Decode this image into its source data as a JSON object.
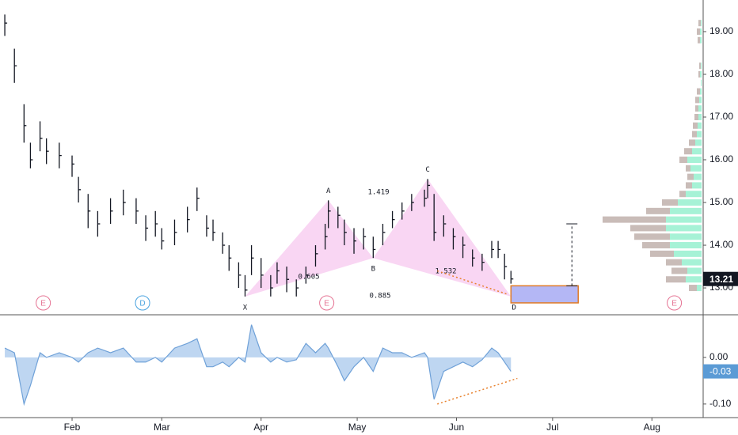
{
  "chart_data": {
    "type": "ohlc",
    "color": "#131722",
    "x": [
      11,
      14,
      17,
      19,
      22,
      24,
      28,
      32,
      34,
      37,
      40,
      44,
      48,
      52,
      55,
      58,
      60,
      64,
      68,
      71,
      74,
      76,
      79,
      81,
      84,
      86,
      88,
      91,
      94,
      96,
      99,
      102,
      105,
      108,
      111,
      112,
      115,
      117,
      120,
      123,
      126,
      129,
      132,
      135,
      138,
      142,
      143,
      145,
      148,
      151,
      154,
      157,
      160,
      163,
      165,
      167,
      169
    ],
    "high": [
      19.4,
      18.6,
      17.3,
      16.4,
      16.9,
      16.5,
      16.4,
      16.1,
      15.6,
      15.2,
      14.8,
      15.1,
      15.3,
      15.1,
      14.7,
      14.8,
      14.4,
      14.6,
      14.9,
      15.35,
      14.7,
      14.6,
      14.3,
      14.0,
      13.6,
      13.3,
      14.0,
      13.7,
      13.3,
      13.6,
      13.5,
      13.2,
      13.5,
      14.0,
      14.5,
      15.05,
      14.9,
      14.6,
      14.4,
      14.4,
      14.2,
      14.5,
      14.8,
      15.0,
      15.2,
      15.3,
      15.55,
      15.2,
      14.7,
      14.4,
      14.2,
      13.9,
      13.8,
      14.1,
      14.1,
      13.8,
      13.4
    ],
    "low": [
      18.9,
      17.8,
      16.4,
      15.8,
      16.2,
      15.9,
      15.8,
      15.6,
      15.0,
      14.4,
      14.2,
      14.5,
      14.7,
      14.5,
      14.1,
      14.2,
      13.9,
      14.0,
      14.3,
      14.8,
      14.2,
      14.1,
      13.8,
      13.4,
      13.0,
      12.8,
      13.3,
      13.0,
      12.8,
      13.1,
      12.9,
      12.8,
      13.1,
      13.5,
      13.9,
      14.4,
      14.4,
      14.0,
      13.8,
      13.9,
      13.7,
      14.0,
      14.4,
      14.6,
      14.8,
      14.9,
      15.1,
      14.1,
      14.2,
      13.9,
      13.7,
      13.5,
      13.4,
      13.7,
      13.7,
      13.2,
      13.1
    ],
    "close": [
      19.2,
      18.2,
      16.8,
      16.0,
      16.5,
      16.2,
      16.1,
      15.9,
      15.3,
      14.8,
      14.5,
      14.8,
      15.0,
      14.8,
      14.4,
      14.5,
      14.1,
      14.3,
      14.6,
      15.1,
      14.4,
      14.3,
      14.0,
      13.7,
      13.3,
      12.95,
      13.7,
      13.3,
      13.0,
      13.4,
      13.2,
      13.0,
      13.3,
      13.8,
      14.2,
      14.8,
      14.7,
      14.3,
      14.1,
      14.2,
      13.9,
      14.3,
      14.6,
      14.8,
      15.0,
      15.1,
      15.4,
      14.3,
      14.5,
      14.2,
      14.0,
      13.7,
      13.6,
      13.9,
      13.9,
      13.5,
      13.21
    ],
    "xlim": [
      9.5,
      229
    ],
    "xticks": [
      {
        "value": 32,
        "label": "Feb"
      },
      {
        "value": 60,
        "label": "Mar"
      },
      {
        "value": 91,
        "label": "Apr"
      },
      {
        "value": 121,
        "label": "May"
      },
      {
        "value": 152,
        "label": "Jun"
      },
      {
        "value": 182,
        "label": "Jul"
      },
      {
        "value": 213,
        "label": "Aug"
      }
    ],
    "ylim": [
      12.39,
      19.74
    ],
    "yticks": [
      {
        "value": 13,
        "label": "13.00"
      },
      {
        "value": 14,
        "label": "14.00"
      },
      {
        "value": 15,
        "label": "15.00"
      },
      {
        "value": 16,
        "label": "16.00"
      },
      {
        "value": 17,
        "label": "17.00"
      },
      {
        "value": 18,
        "label": "18.00"
      },
      {
        "value": 19,
        "label": "19.00"
      }
    ],
    "last_price": 13.21,
    "pattern": {
      "x": [
        86,
        112,
        126,
        143,
        169
      ],
      "y": [
        12.8,
        15.05,
        13.7,
        15.55,
        12.8
      ],
      "labels": [
        "X",
        "A",
        "B",
        "C",
        "D"
      ],
      "ratios": [
        0.605,
        1.419,
        0.885,
        1.532
      ],
      "color": "#f7c8ef"
    },
    "events": {
      "x": [
        23,
        54,
        111.5,
        220
      ],
      "labels": [
        "E",
        "D",
        "E",
        "E"
      ],
      "colors": [
        "#e57393",
        "#4aa3df",
        "#e57393",
        "#e57393"
      ]
    },
    "target": {
      "xlim": [
        169,
        190
      ],
      "ylim": [
        12.65,
        13.05
      ],
      "price": 14.5,
      "color": "#b4b7f5"
    },
    "divergence": {
      "x": [
        146,
        168
      ],
      "price": [
        13.4,
        12.85
      ],
      "x2": [
        146,
        171
      ],
      "indicator": [
        -0.1,
        -0.045
      ],
      "color": "#e8822f"
    },
    "indicator": {
      "values": [
        0.02,
        0.01,
        -0.1,
        -0.06,
        0.01,
        0.0,
        0.01,
        0.0,
        -0.01,
        0.01,
        0.02,
        0.01,
        0.02,
        -0.01,
        -0.01,
        0.0,
        -0.01,
        0.02,
        0.03,
        0.04,
        -0.02,
        -0.02,
        -0.01,
        -0.02,
        0.0,
        -0.01,
        0.07,
        0.01,
        -0.01,
        0.0,
        -0.01,
        -0.005,
        0.03,
        0.01,
        0.03,
        0.02,
        -0.02,
        -0.05,
        -0.02,
        0.0,
        -0.03,
        0.02,
        0.01,
        0.01,
        0.0,
        0.01,
        0.0,
        -0.09,
        -0.03,
        -0.02,
        -0.01,
        -0.02,
        -0.005,
        0.02,
        0.01,
        -0.01,
        -0.03
      ],
      "ylim": [
        -0.124,
        0.088
      ],
      "yticks": [
        {
          "value": 0,
          "label": "0.00"
        },
        {
          "value": -0.1,
          "label": "-0.10"
        }
      ],
      "last": -0.03,
      "color": "#6fa1d8"
    },
    "volume_profile": {
      "prices": [
        13.0,
        13.2,
        13.4,
        13.6,
        13.8,
        14.0,
        14.2,
        14.4,
        14.6,
        14.8,
        15.0,
        15.2,
        15.4,
        15.6,
        15.8,
        16.0,
        16.2,
        16.4,
        16.6,
        16.8,
        17.0,
        17.2,
        17.4,
        17.6,
        17.8,
        18.0,
        18.2,
        18.4,
        18.6,
        18.8,
        19.0,
        19.2
      ],
      "up": [
        6,
        20,
        18,
        25,
        35,
        40,
        40,
        45,
        45,
        40,
        30,
        20,
        12,
        10,
        14,
        18,
        12,
        8,
        6,
        5,
        4,
        4,
        3,
        2,
        1,
        2,
        1,
        0,
        0,
        2,
        2,
        1
      ],
      "down": [
        10,
        25,
        20,
        20,
        30,
        35,
        45,
        45,
        80,
        30,
        20,
        8,
        8,
        8,
        6,
        10,
        10,
        8,
        6,
        6,
        5,
        4,
        5,
        4,
        0,
        2,
        2,
        0,
        0,
        3,
        4,
        3
      ],
      "up_color": "#a6f2d6",
      "down_color": "#c9bcb8"
    }
  }
}
